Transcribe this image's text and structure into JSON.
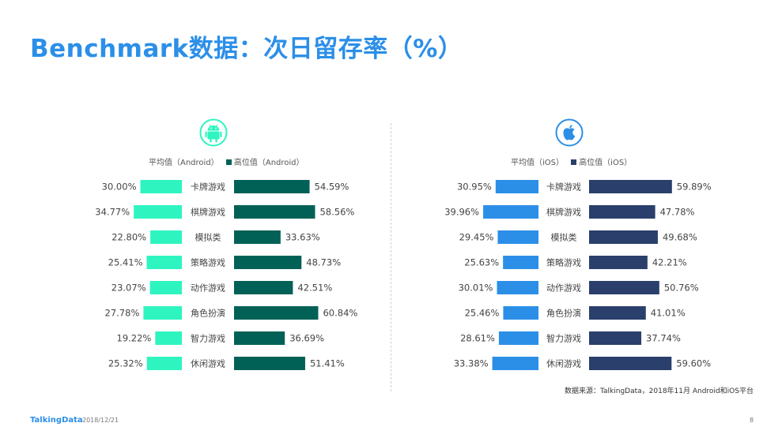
{
  "title": "Benchmark数据：次日留存率（%）",
  "colors": {
    "android_avg": "#2ef5c0",
    "android_high": "#016156",
    "ios_avg": "#2b8fe8",
    "ios_high": "#2a3f6b",
    "title": "#2b8fe8"
  },
  "icons": {
    "android": "android-robot-icon",
    "ios": "apple-icon"
  },
  "legend": {
    "android_avg": "平均值（Android）",
    "android_high": "高位值（Android）",
    "ios_avg": "平均值（iOS）",
    "ios_high": "高位值（iOS）"
  },
  "chart_data": [
    {
      "type": "bar",
      "categories": [
        "卡牌游戏",
        "棋牌游戏",
        "模拟类",
        "策略游戏",
        "动作游戏",
        "角色扮演",
        "智力游戏",
        "休闲游戏"
      ],
      "series": [
        {
          "name": "平均值（Android）",
          "values": [
            30.0,
            34.77,
            22.8,
            25.41,
            23.07,
            27.78,
            19.22,
            25.32
          ],
          "labels": [
            "30.00%",
            "34.77%",
            "22.80%",
            "25.41%",
            "23.07%",
            "27.78%",
            "19.22%",
            "25.32%"
          ]
        },
        {
          "name": "高位值（Android）",
          "values": [
            54.59,
            58.56,
            33.63,
            48.73,
            42.51,
            60.84,
            36.69,
            51.41
          ],
          "labels": [
            "54.59%",
            "58.56%",
            "33.63%",
            "48.73%",
            "42.51%",
            "60.84%",
            "36.69%",
            "51.41%"
          ]
        }
      ]
    },
    {
      "type": "bar",
      "categories": [
        "卡牌游戏",
        "棋牌游戏",
        "模拟类",
        "策略游戏",
        "动作游戏",
        "角色扮演",
        "智力游戏",
        "休闲游戏"
      ],
      "series": [
        {
          "name": "平均值（iOS）",
          "values": [
            30.95,
            39.96,
            29.45,
            25.63,
            30.01,
            25.46,
            28.61,
            33.38
          ],
          "labels": [
            "30.95%",
            "39.96%",
            "29.45%",
            "25.63%",
            "30.01%",
            "25.46%",
            "28.61%",
            "33.38%"
          ]
        },
        {
          "name": "高位值（iOS）",
          "values": [
            59.89,
            47.78,
            49.68,
            42.21,
            50.76,
            41.01,
            37.74,
            59.6
          ],
          "labels": [
            "59.89%",
            "47.78%",
            "49.68%",
            "42.21%",
            "50.76%",
            "41.01%",
            "37.74%",
            "59.60%"
          ]
        }
      ]
    }
  ],
  "source": "数据来源：TalkingData，2018年11月 Android和iOS平台",
  "footer": {
    "brand": "TalkingData",
    "date": "2018/12/21",
    "page": "8"
  }
}
